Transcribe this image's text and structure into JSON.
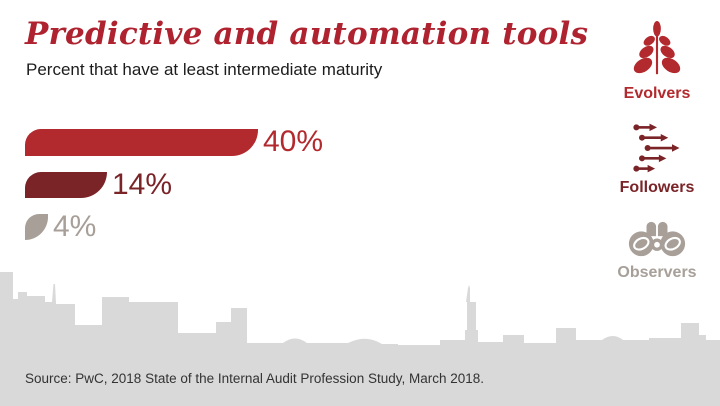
{
  "header": {
    "title": "Predictive and automation tools",
    "subtitle": "Percent that have at least intermediate maturity"
  },
  "chart_data": {
    "type": "bar",
    "orientation": "horizontal",
    "title": "Predictive and automation tools",
    "subtitle": "Percent that have at least intermediate maturity",
    "categories": [
      "Evolvers",
      "Followers",
      "Observers"
    ],
    "values": [
      40,
      14,
      4
    ],
    "value_labels": [
      "40%",
      "14%",
      "4%"
    ],
    "colors": [
      "#b2292e",
      "#7a2428",
      "#a79f98"
    ],
    "axis_visible": false,
    "legend_position": "right",
    "source": "Source: PwC, 2018 State of the Internal Audit Profession Study, March 2018."
  },
  "legend": {
    "items": [
      {
        "label": "Evolvers",
        "icon": "plant-icon",
        "color": "#b2292e"
      },
      {
        "label": "Followers",
        "icon": "arrows-icon",
        "color": "#7a2428"
      },
      {
        "label": "Observers",
        "icon": "binoculars-icon",
        "color": "#a79f98"
      }
    ]
  },
  "footer": {
    "source": "Source: PwC, 2018 State of the Internal Audit Profession Study, March 2018."
  },
  "colors": {
    "title": "#ae232f",
    "subtitle": "#1c1c1c",
    "skyline": "#d9d9d9",
    "background": "#ffffff"
  }
}
